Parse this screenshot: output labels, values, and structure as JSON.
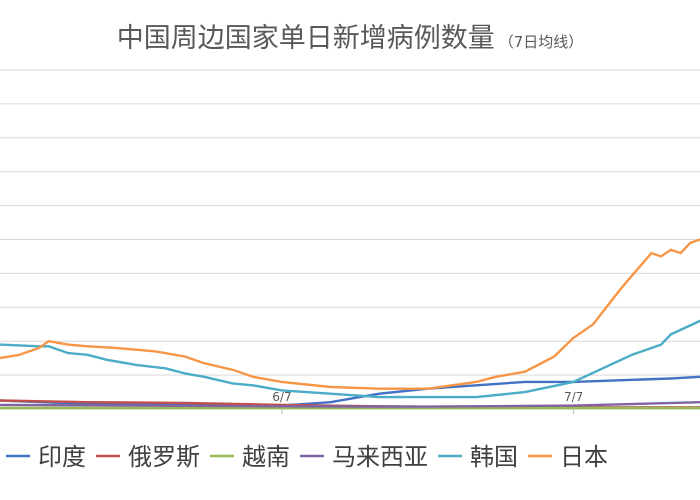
{
  "chart_data": {
    "type": "line",
    "title": "中国周边国家单日新增病例数量",
    "subtitle": "（7日均线）",
    "xlabel": "",
    "ylabel": "",
    "x_ticks": [
      {
        "label": "6/7",
        "day": 0
      },
      {
        "label": "7/7",
        "day": 30
      }
    ],
    "xlim": [
      -29,
      43
    ],
    "ylim": [
      0,
      10
    ],
    "y_gridlines": 10,
    "grid": "horizontal",
    "legend_position": "bottom",
    "series": [
      {
        "name": "印度",
        "color": "#4472C4",
        "x": [
          -29,
          -20,
          -10,
          0,
          5,
          8,
          10,
          15,
          20,
          25,
          30,
          35,
          40,
          43
        ],
        "y": [
          0.25,
          0.15,
          0.12,
          0.1,
          0.2,
          0.35,
          0.45,
          0.6,
          0.7,
          0.8,
          0.8,
          0.85,
          0.9,
          0.95
        ]
      },
      {
        "name": "俄罗斯",
        "color": "#C0504D",
        "x": [
          -29,
          -20,
          -10,
          0,
          10,
          20,
          30,
          43
        ],
        "y": [
          0.25,
          0.2,
          0.18,
          0.12,
          0.08,
          0.05,
          0.05,
          0.05
        ]
      },
      {
        "name": "越南",
        "color": "#9BBB59",
        "x": [
          -29,
          0,
          30,
          43
        ],
        "y": [
          0.03,
          0.03,
          0.03,
          0.03
        ]
      },
      {
        "name": "马来西亚",
        "color": "#8064A2",
        "x": [
          -29,
          -15,
          0,
          15,
          30,
          43
        ],
        "y": [
          0.12,
          0.1,
          0.08,
          0.07,
          0.1,
          0.2
        ]
      },
      {
        "name": "韩国",
        "color": "#4BACC6",
        "x": [
          -29,
          -25,
          -24,
          -22,
          -20,
          -18,
          -15,
          -12,
          -10,
          -8,
          -5,
          -3,
          0,
          5,
          10,
          15,
          20,
          25,
          30,
          33,
          36,
          39,
          40,
          43
        ],
        "y": [
          1.9,
          1.85,
          1.85,
          1.65,
          1.6,
          1.45,
          1.3,
          1.2,
          1.05,
          0.95,
          0.75,
          0.7,
          0.55,
          0.45,
          0.35,
          0.35,
          0.35,
          0.5,
          0.8,
          1.2,
          1.6,
          1.9,
          2.2,
          2.6
        ]
      },
      {
        "name": "日本",
        "color": "#F79646",
        "x": [
          -29,
          -27,
          -25,
          -24,
          -22,
          -20,
          -17,
          -15,
          -13,
          -10,
          -8,
          -5,
          -3,
          0,
          5,
          10,
          15,
          20,
          22,
          25,
          28,
          30,
          32,
          35,
          38,
          39,
          40,
          41,
          42,
          43
        ],
        "y": [
          1.5,
          1.6,
          1.8,
          2.0,
          1.9,
          1.85,
          1.8,
          1.75,
          1.7,
          1.55,
          1.35,
          1.15,
          0.95,
          0.8,
          0.65,
          0.6,
          0.6,
          0.8,
          0.95,
          1.1,
          1.55,
          2.1,
          2.5,
          3.6,
          4.6,
          4.5,
          4.7,
          4.6,
          4.9,
          5.0
        ]
      }
    ]
  }
}
